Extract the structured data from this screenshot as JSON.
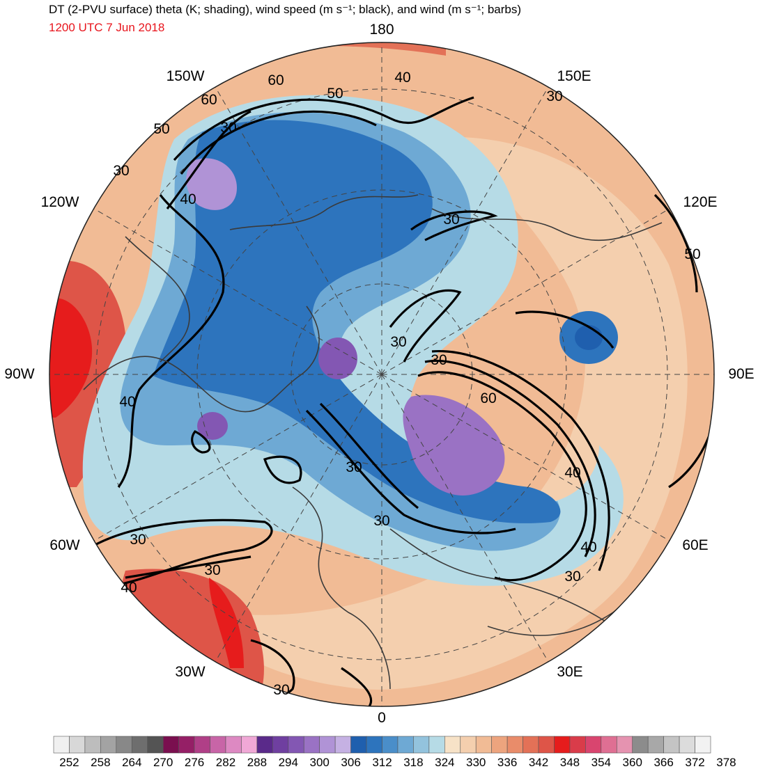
{
  "header": {
    "title": "DT (2-PVU surface) theta (K; shading), wind speed (m s⁻¹; black), and wind (m s⁻¹; barbs)",
    "valid_time": "1200 UTC 7 Jun 2018"
  },
  "meridian_labels": {
    "lon_180": "180",
    "lon_150w": "150W",
    "lon_150e": "150E",
    "lon_120w": "120W",
    "lon_120e": "120E",
    "lon_90w": "90W",
    "lon_90e": "90E",
    "lon_60w": "60W",
    "lon_60e": "60E",
    "lon_30w": "30W",
    "lon_30e": "30E",
    "lon_0": "0"
  },
  "contour_labels": {
    "c1": "60",
    "c2": "60",
    "c3": "50",
    "c4": "40",
    "c5": "30",
    "c6": "30",
    "c7": "50",
    "c8": "30",
    "c9": "40",
    "c10": "30",
    "c11": "50",
    "c12": "30",
    "c13": "30",
    "c14": "60",
    "c15": "40",
    "c16": "30",
    "c17": "30",
    "c18": "40",
    "c19": "30",
    "c20": "40",
    "c21": "30",
    "c22": "30",
    "c23": "40",
    "c24": "30"
  },
  "colorbar": {
    "labels": [
      "252",
      "258",
      "264",
      "270",
      "276",
      "282",
      "288",
      "294",
      "300",
      "306",
      "312",
      "318",
      "324",
      "330",
      "336",
      "342",
      "348",
      "354",
      "360",
      "366",
      "372",
      "378"
    ],
    "colors": [
      "#f0f0f0",
      "#d8d8d8",
      "#bdbdbd",
      "#a3a3a3",
      "#888888",
      "#6e6e6e",
      "#545454",
      "#7a0f4f",
      "#951f66",
      "#b03f87",
      "#c865a7",
      "#dd89c2",
      "#f0a8d6",
      "#5a2a8a",
      "#6f3fa0",
      "#8357b3",
      "#9a72c4",
      "#b093d6",
      "#c5b1e3",
      "#1f5fae",
      "#2d74bd",
      "#4a8ec9",
      "#6ea9d4",
      "#93c3dd",
      "#b6dbe6",
      "#f7e2c7",
      "#f4cfae",
      "#f1bb95",
      "#eda47e",
      "#e98c6a",
      "#e37157",
      "#de5548",
      "#e61c1c",
      "#d93c4a",
      "#d9456f",
      "#df6f93",
      "#e593b0",
      "#8c8c8c",
      "#a8a8a8",
      "#c4c4c4",
      "#dcdcdc",
      "#f2f2f2"
    ]
  }
}
